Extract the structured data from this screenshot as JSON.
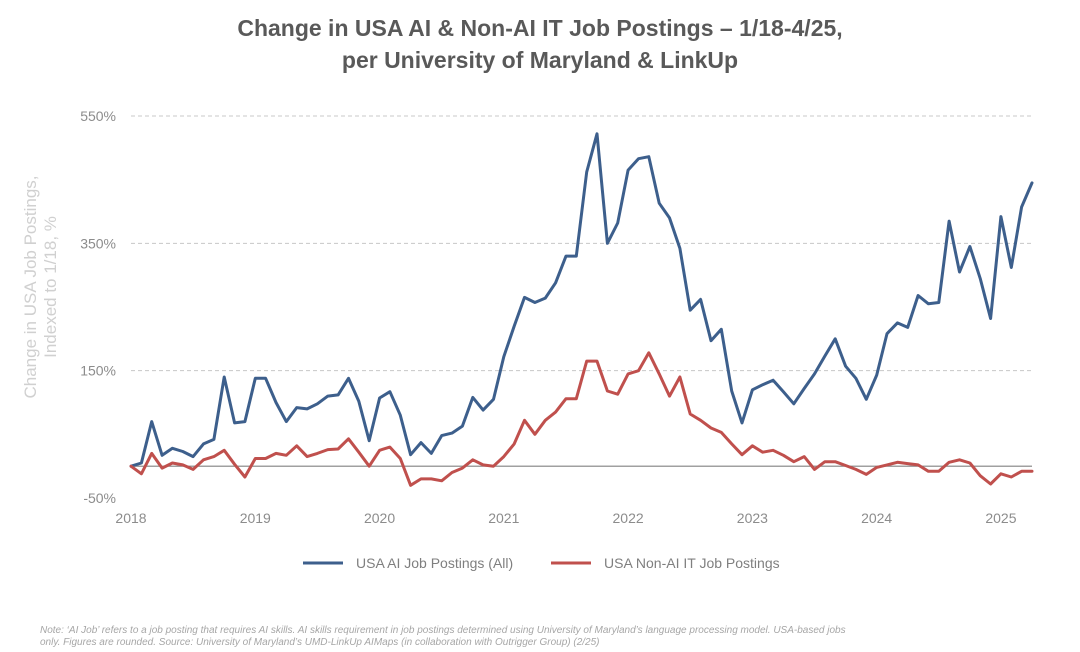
{
  "chart_data": {
    "type": "line",
    "title": "Change in USA AI & Non-AI IT Job Postings – 1/18-4/25,",
    "subtitle": "per University of Maryland & LinkUp",
    "ylabel_line1": "Change in USA Job Postings,",
    "ylabel_line2": "Indexed to 1/18, %",
    "xlabel": "",
    "ylim": [
      -50,
      550
    ],
    "yticks": [
      {
        "value": 550,
        "label": "550%"
      },
      {
        "value": 350,
        "label": "350%"
      },
      {
        "value": 150,
        "label": "150%"
      },
      {
        "value": -50,
        "label": "-50%"
      }
    ],
    "xlim": [
      2018.0,
      2025.25
    ],
    "xticks": [
      {
        "value": 2018,
        "label": "2018"
      },
      {
        "value": 2019,
        "label": "2019"
      },
      {
        "value": 2020,
        "label": "2020"
      },
      {
        "value": 2021,
        "label": "2021"
      },
      {
        "value": 2022,
        "label": "2022"
      },
      {
        "value": 2023,
        "label": "2023"
      },
      {
        "value": 2024,
        "label": "2024"
      },
      {
        "value": 2025,
        "label": "2025"
      }
    ],
    "zero_line": 0,
    "grid": true,
    "legend_position": "bottom",
    "x_start": "2018-01",
    "x_step_months": 1,
    "series": [
      {
        "name": "USA AI Job Postings (All)",
        "color": "#3d5f8c",
        "values": [
          0,
          5,
          70,
          17,
          28,
          23,
          15,
          35,
          42,
          140,
          68,
          70,
          138,
          138,
          100,
          70,
          92,
          90,
          98,
          110,
          112,
          138,
          102,
          40,
          107,
          117,
          80,
          18,
          37,
          20,
          48,
          52,
          63,
          108,
          88,
          105,
          172,
          220,
          265,
          257,
          264,
          288,
          330,
          330,
          462,
          522,
          350,
          382,
          465,
          483,
          486,
          413,
          390,
          342,
          245,
          262,
          197,
          215,
          118,
          68,
          120,
          128,
          135,
          117,
          98,
          122,
          145,
          173,
          200,
          157,
          138,
          105,
          143,
          208,
          225,
          218,
          268,
          255,
          257,
          385,
          305,
          345,
          295,
          232,
          392,
          312,
          407,
          445
        ]
      },
      {
        "name": "USA Non-AI IT Job Postings",
        "color": "#c0504d",
        "values": [
          0,
          -12,
          20,
          -3,
          5,
          2,
          -5,
          10,
          15,
          25,
          3,
          -17,
          12,
          12,
          20,
          17,
          32,
          15,
          20,
          26,
          27,
          43,
          22,
          0,
          25,
          30,
          12,
          -30,
          -20,
          -20,
          -23,
          -10,
          -3,
          10,
          2,
          0,
          15,
          35,
          72,
          50,
          72,
          85,
          106,
          106,
          165,
          165,
          118,
          113,
          145,
          150,
          178,
          145,
          110,
          140,
          82,
          72,
          60,
          53,
          35,
          18,
          32,
          22,
          25,
          17,
          7,
          15,
          -5,
          7,
          7,
          1,
          -5,
          -13,
          -2,
          2,
          6,
          4,
          2,
          -8,
          -8,
          6,
          10,
          5,
          -15,
          -28,
          -12,
          -17,
          -8,
          -8
        ]
      }
    ]
  },
  "note_line1": "Note: ‘AI Job’ refers to a job posting that requires AI skills. AI skills requirement in job postings determined using University of Maryland’s language processing model. USA-based jobs",
  "note_line2": "only. Figures are rounded. Source: University of Maryland’s UMD-LinkUp AIMaps (in collaboration with Outrigger Group) (2/25)",
  "colors": {
    "title": "#595959",
    "axis_text": "#8c8c8c",
    "ylabel_text": "#d0d0d0",
    "grid": "#c8c8c8",
    "zero_line": "#808080"
  }
}
